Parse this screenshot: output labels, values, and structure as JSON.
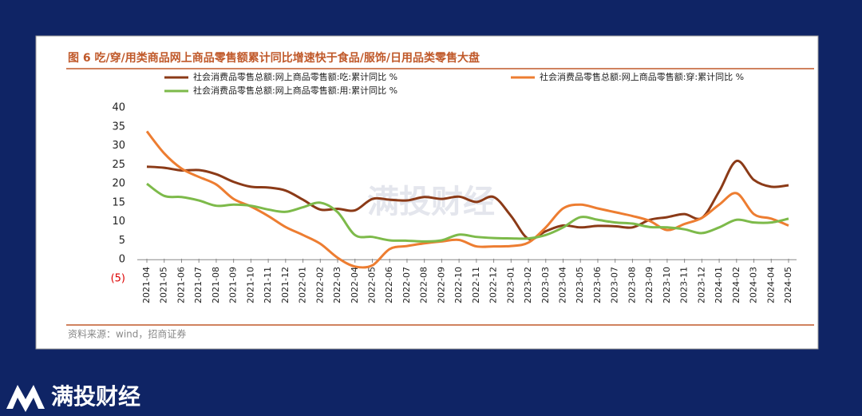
{
  "chart_data": {
    "type": "line",
    "title": "图 6 吃/穿/用类商品网上商品零售额累计同比增速快于食品/服饰/日用品类零售大盘",
    "source": "资料来源：wind，招商证券",
    "watermark": "满投财经",
    "brand": "满投财经",
    "categories": [
      "2021-04",
      "2021-05",
      "2021-06",
      "2021-07",
      "2021-08",
      "2021-09",
      "2021-10",
      "2021-11",
      "2021-12",
      "2022-01",
      "2022-02",
      "2022-03",
      "2022-04",
      "2022-05",
      "2022-06",
      "2022-07",
      "2022-08",
      "2022-09",
      "2022-10",
      "2022-11",
      "2022-12",
      "2023-01",
      "2023-02",
      "2023-03",
      "2023-04",
      "2023-05",
      "2023-06",
      "2023-07",
      "2023-08",
      "2023-09",
      "2023-10",
      "2023-11",
      "2023-12",
      "2024-01",
      "2024-02",
      "2024-03",
      "2024-04",
      "2024-05"
    ],
    "series": [
      {
        "name": "社会消费品零售总额:网上商品零售额:吃:累计同比 %",
        "color": "#8b3a17",
        "values": [
          24.5,
          24.2,
          23.5,
          23.6,
          22.5,
          20.5,
          19.2,
          19,
          18.2,
          15.8,
          13.2,
          13.4,
          13,
          16,
          15.8,
          15.6,
          16.5,
          16,
          16.6,
          15.2,
          16.5,
          11.5,
          5.5,
          7.5,
          9,
          8.5,
          8.9,
          8.8,
          8.5,
          10.5,
          11.2,
          12,
          11,
          18,
          26,
          21,
          19.2,
          19.6
        ]
      },
      {
        "name": "社会消费品零售总额:网上商品零售额:穿:累计同比 %",
        "color": "#ed7d31",
        "values": [
          33.8,
          28,
          24,
          21.8,
          19.8,
          16,
          14,
          11.5,
          8.6,
          6.5,
          4.2,
          0.5,
          -1.8,
          -1.5,
          2.8,
          3.6,
          4.3,
          4.8,
          5.2,
          3.5,
          3.5,
          3.6,
          4.5,
          8.5,
          13.5,
          14.5,
          13.5,
          12.5,
          11.5,
          10.2,
          7.8,
          9.4,
          11,
          14.5,
          17.5,
          12,
          10.8,
          9
        ]
      },
      {
        "name": "社会消费品零售总额:网上商品零售额:用:累计同比 %",
        "color": "#7dba4a",
        "values": [
          20,
          16.8,
          16.5,
          15.6,
          14.2,
          14.5,
          14.2,
          13.2,
          12.6,
          13.8,
          15,
          12.5,
          6.5,
          6,
          5.1,
          5,
          4.8,
          5.1,
          6.6,
          6,
          5.7,
          5.6,
          5.6,
          6.5,
          8.5,
          11.2,
          10.5,
          9.8,
          9.5,
          8.6,
          8.5,
          8,
          7,
          8.5,
          10.5,
          9.8,
          9.8,
          10.8
        ]
      }
    ],
    "ylim": [
      -5,
      40
    ],
    "yticks": [
      {
        "value": -5,
        "label": "(5)"
      },
      0,
      5,
      10,
      15,
      20,
      25,
      30,
      35,
      40
    ]
  }
}
